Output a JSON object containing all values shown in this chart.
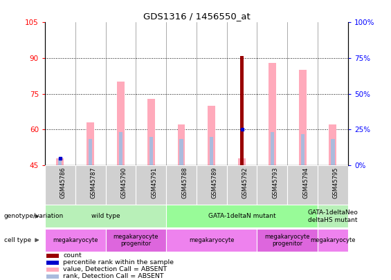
{
  "title": "GDS1316 / 1456550_at",
  "samples": [
    "GSM45786",
    "GSM45787",
    "GSM45790",
    "GSM45791",
    "GSM45788",
    "GSM45789",
    "GSM45792",
    "GSM45793",
    "GSM45794",
    "GSM45795"
  ],
  "ylim_left": [
    45,
    105
  ],
  "ylim_right": [
    0,
    100
  ],
  "yticks_left": [
    45,
    60,
    75,
    90,
    105
  ],
  "yticks_right": [
    0,
    25,
    50,
    75,
    100
  ],
  "yticklabels_right": [
    "0%",
    "25%",
    "50%",
    "75%",
    "100%"
  ],
  "bar_pink_top": [
    48,
    63,
    80,
    73,
    62,
    70,
    48,
    88,
    85,
    62
  ],
  "bar_blue_top": [
    48,
    56,
    59,
    57,
    56,
    57,
    62,
    59,
    58,
    56
  ],
  "bar_red_top": [
    46,
    45,
    45,
    45,
    45,
    45,
    91,
    45,
    45,
    45
  ],
  "dot_blue_y": [
    48,
    null,
    null,
    null,
    null,
    null,
    60,
    null,
    null,
    null
  ],
  "bar_pink_base": 45,
  "bar_blue_base": 45,
  "bar_red_base": 45,
  "pink_color": "#ffaabb",
  "blue_color": "#aabbdd",
  "red_color": "#990000",
  "dot_color": "#0000cc",
  "bg_color": "#ffffff",
  "grid_dotted_color": "#000000",
  "genotype_groups": [
    {
      "label": "wild type",
      "start": 0,
      "end": 4,
      "color": "#b8f0b8"
    },
    {
      "label": "GATA-1deltaN mutant",
      "start": 4,
      "end": 9,
      "color": "#98fb98"
    },
    {
      "label": "GATA-1deltaNeo\ndeltaHS mutant",
      "start": 9,
      "end": 10,
      "color": "#b8f0b8"
    }
  ],
  "cell_type_groups": [
    {
      "label": "megakaryocyte",
      "start": 0,
      "end": 2,
      "color": "#ee82ee"
    },
    {
      "label": "megakaryocyte\nprogenitor",
      "start": 2,
      "end": 4,
      "color": "#dd66dd"
    },
    {
      "label": "megakaryocyte",
      "start": 4,
      "end": 7,
      "color": "#ee82ee"
    },
    {
      "label": "megakaryocyte\nprogenitor",
      "start": 7,
      "end": 9,
      "color": "#dd66dd"
    },
    {
      "label": "megakaryocyte",
      "start": 9,
      "end": 10,
      "color": "#ee82ee"
    }
  ],
  "legend_items": [
    {
      "color": "#990000",
      "label": "count"
    },
    {
      "color": "#0000cc",
      "label": "percentile rank within the sample"
    },
    {
      "color": "#ffaabb",
      "label": "value, Detection Call = ABSENT"
    },
    {
      "color": "#aabbdd",
      "label": "rank, Detection Call = ABSENT"
    }
  ]
}
